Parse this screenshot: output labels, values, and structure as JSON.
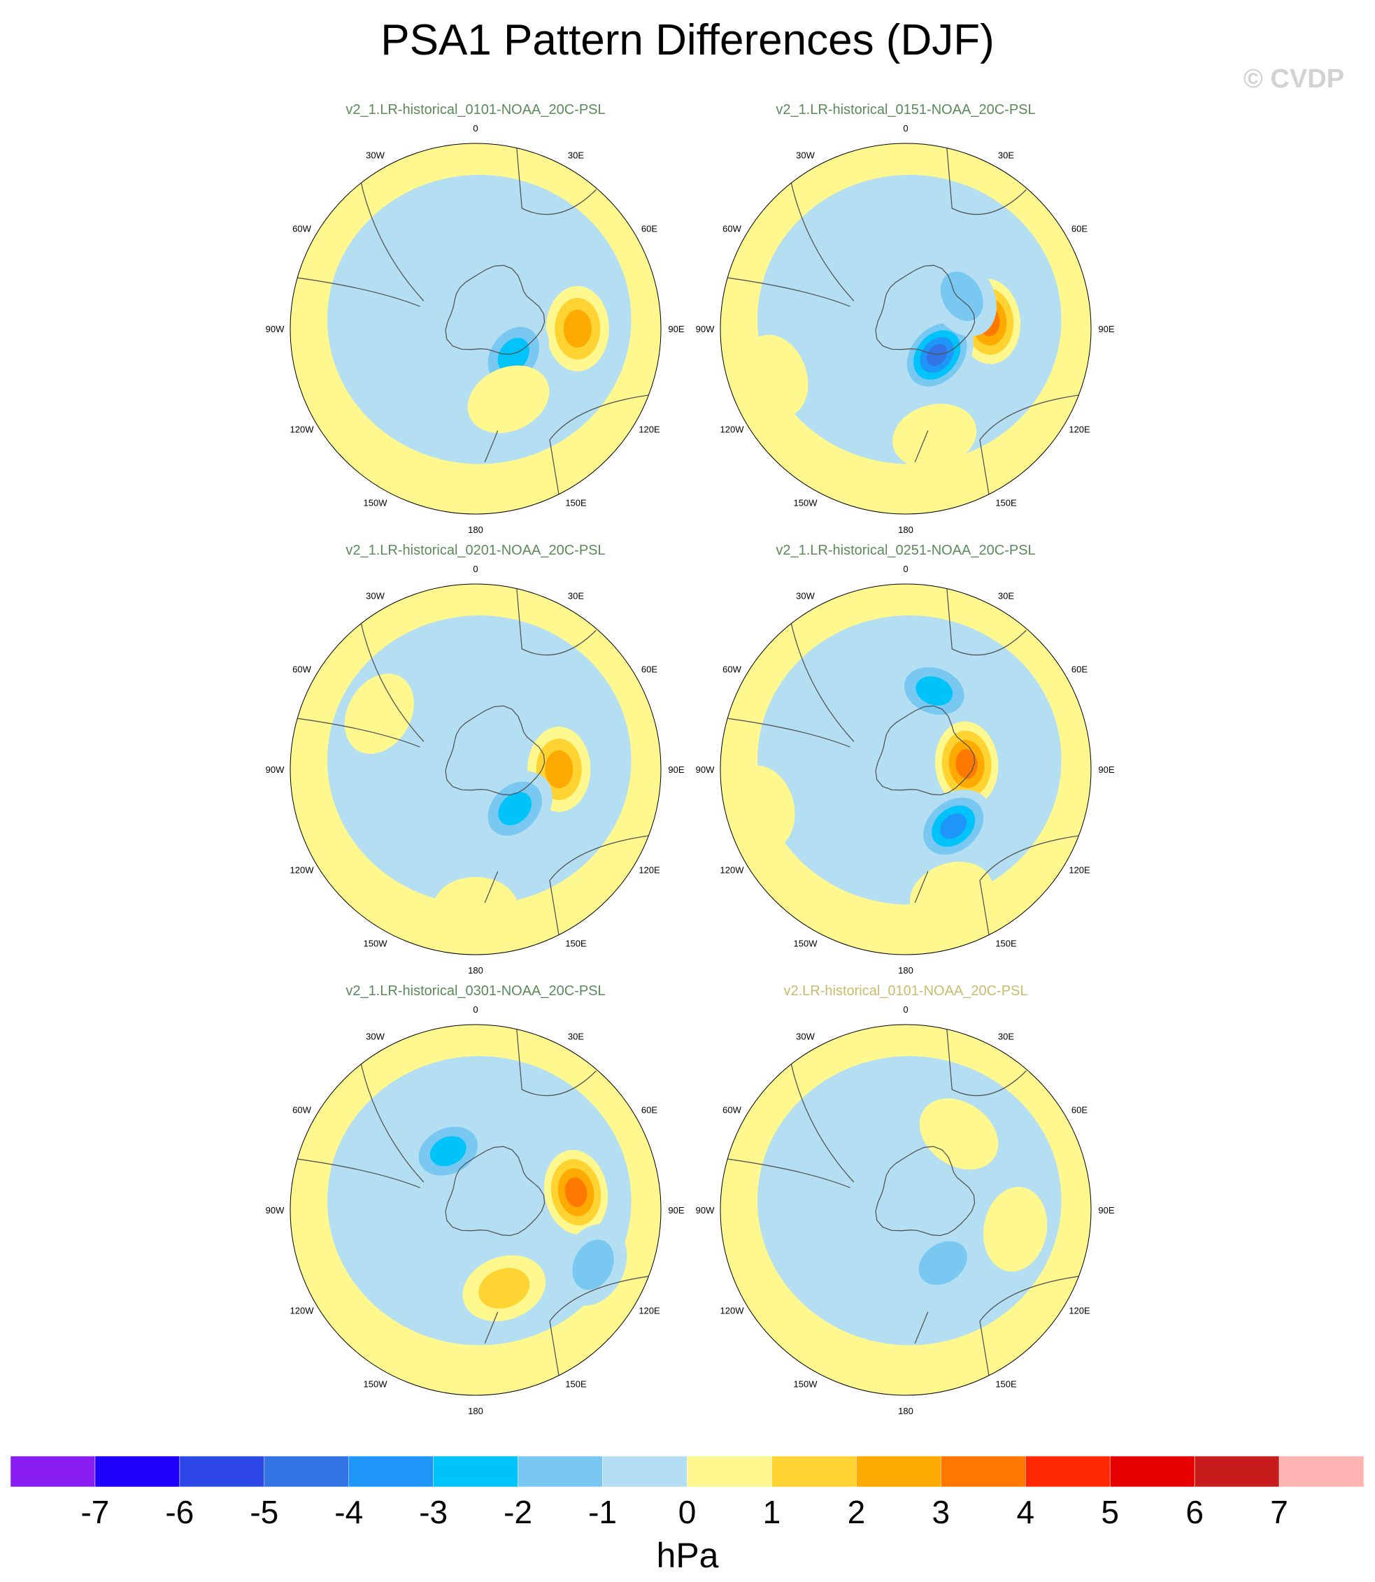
{
  "title": "PSA1 Pattern Differences (DJF)",
  "copyright": "© CVDP",
  "chart_data": {
    "type": "heatmap",
    "projection": "south-polar-stereographic",
    "title": "PSA1 Pattern Differences (DJF)",
    "units": "hPa",
    "longitude_labels": [
      "0",
      "30E",
      "60E",
      "90E",
      "120E",
      "150E",
      "180",
      "150W",
      "120W",
      "90W",
      "60W",
      "30W"
    ],
    "colorbar": {
      "ticks": [
        "-7",
        "-6",
        "-5",
        "-4",
        "-3",
        "-2",
        "-1",
        "0",
        "1",
        "2",
        "3",
        "4",
        "5",
        "6",
        "7"
      ],
      "colors": [
        "#8a1ef2",
        "#1e00fa",
        "#2c46e8",
        "#3273e6",
        "#1e96f9",
        "#00c3fa",
        "#78c8f2",
        "#b4dff2",
        "#fff88f",
        "#ffd432",
        "#ffaa00",
        "#ff7800",
        "#ff2800",
        "#e60000",
        "#c81c1c",
        "#ffb4b4"
      ]
    },
    "panels": [
      {
        "name": "v2_1.LR-historical_0101-NOAA_20C-PSL",
        "title_color": "#5a8a5a",
        "features": [
          {
            "lon": 90,
            "r": 0.55,
            "value": 3
          },
          {
            "lon": 125,
            "r": 0.25,
            "value": -3
          },
          {
            "lon": 155,
            "r": 0.42,
            "value": 1
          },
          {
            "lon": 12,
            "r": 0.55,
            "value": -1
          }
        ]
      },
      {
        "name": "v2_1.LR-historical_0151-NOAA_20C-PSL",
        "title_color": "#5a8a5a",
        "features": [
          {
            "lon": 85,
            "r": 0.45,
            "value": 4
          },
          {
            "lon": 130,
            "r": 0.22,
            "value": -5
          },
          {
            "lon": 165,
            "r": 0.6,
            "value": 1
          },
          {
            "lon": 60,
            "r": 0.35,
            "value": -2
          },
          {
            "lon": 250,
            "r": 0.75,
            "value": 1
          }
        ]
      },
      {
        "name": "v2_1.LR-historical_0201-NOAA_20C-PSL",
        "title_color": "#5a8a5a",
        "features": [
          {
            "lon": 90,
            "r": 0.45,
            "value": 3
          },
          {
            "lon": 135,
            "r": 0.3,
            "value": -3
          },
          {
            "lon": 300,
            "r": 0.6,
            "value": 1
          },
          {
            "lon": 180,
            "r": 0.75,
            "value": 1
          }
        ]
      },
      {
        "name": "v2_1.LR-historical_0251-NOAA_20C-PSL",
        "title_color": "#5a8a5a",
        "features": [
          {
            "lon": 85,
            "r": 0.33,
            "value": 4
          },
          {
            "lon": 140,
            "r": 0.4,
            "value": -4
          },
          {
            "lon": 20,
            "r": 0.45,
            "value": -3
          },
          {
            "lon": 160,
            "r": 0.72,
            "value": 1
          },
          {
            "lon": 255,
            "r": 0.8,
            "value": 1
          }
        ]
      },
      {
        "name": "v2_1.LR-historical_0301-NOAA_20C-PSL",
        "title_color": "#5a8a5a",
        "features": [
          {
            "lon": 80,
            "r": 0.55,
            "value": 4
          },
          {
            "lon": 160,
            "r": 0.45,
            "value": 2
          },
          {
            "lon": 335,
            "r": 0.35,
            "value": -3
          },
          {
            "lon": 115,
            "r": 0.7,
            "value": -2
          }
        ]
      },
      {
        "name": "v2.LR-historical_0101-NOAA_20C-PSL",
        "title_color": "#c9bd6b",
        "features": [
          {
            "lon": 35,
            "r": 0.5,
            "value": 1
          },
          {
            "lon": 100,
            "r": 0.6,
            "value": 1
          },
          {
            "lon": 145,
            "r": 0.35,
            "value": -2
          },
          {
            "lon": 300,
            "r": 0.45,
            "value": -1
          }
        ]
      }
    ]
  }
}
